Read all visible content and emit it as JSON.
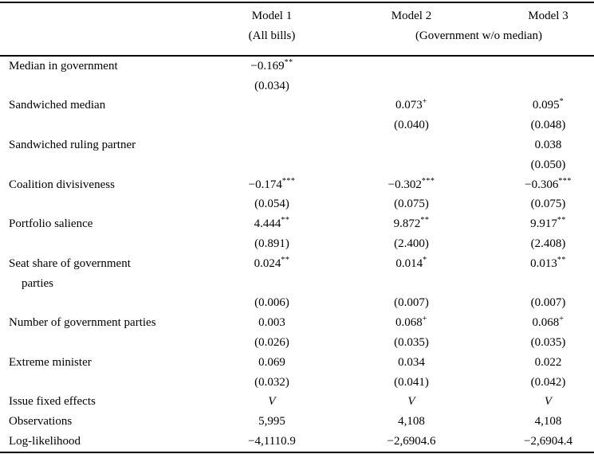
{
  "colors": {
    "background": "#ffffff",
    "text": "#000000",
    "rule": "#000000"
  },
  "table": {
    "header": {
      "models": [
        "Model 1",
        "Model 2",
        "Model 3"
      ],
      "sub_model1": "(All bills)",
      "sub_model23": "(Government w/o median)"
    },
    "rows": [
      {
        "label": "Median in government",
        "cells": [
          "−0.169^**",
          "",
          ""
        ]
      },
      {
        "label": "",
        "cells": [
          "(0.034)",
          "",
          ""
        ]
      },
      {
        "label": "Sandwiched median",
        "cells": [
          "",
          "0.073^+",
          "0.095^*"
        ]
      },
      {
        "label": "",
        "cells": [
          "",
          "(0.040)",
          "(0.048)"
        ]
      },
      {
        "label": "Sandwiched ruling partner",
        "cells": [
          "",
          "",
          "0.038"
        ]
      },
      {
        "label": "",
        "cells": [
          "",
          "",
          "(0.050)"
        ]
      },
      {
        "label": "Coalition divisiveness",
        "cells": [
          "−0.174^***",
          "−0.302^***",
          "−0.306^***"
        ]
      },
      {
        "label": "",
        "cells": [
          "(0.054)",
          "(0.075)",
          "(0.075)"
        ]
      },
      {
        "label": "Portfolio salience",
        "cells": [
          "4.444^**",
          "9.872^**",
          "9.917^**"
        ]
      },
      {
        "label": "",
        "cells": [
          "(0.891)",
          "(2.400)",
          "(2.408)"
        ]
      },
      {
        "label": "Seat share of government",
        "cells": [
          "0.024^**",
          "0.014^*",
          "0.013^**"
        ]
      },
      {
        "label": "parties",
        "indent": true,
        "cells": [
          "",
          "",
          ""
        ]
      },
      {
        "label": "",
        "cells": [
          "(0.006)",
          "(0.007)",
          "(0.007)"
        ]
      },
      {
        "label": "Number of government parties",
        "cells": [
          "0.003",
          "0.068^+",
          "0.068^+"
        ]
      },
      {
        "label": "",
        "cells": [
          "(0.026)",
          "(0.035)",
          "(0.035)"
        ]
      },
      {
        "label": "Extreme minister",
        "cells": [
          "0.069",
          "0.034",
          "0.022"
        ]
      },
      {
        "label": "",
        "cells": [
          "(0.032)",
          "(0.041)",
          "(0.042)"
        ]
      },
      {
        "label": "Issue fixed effects",
        "italic": true,
        "cells": [
          "V",
          "V",
          "V"
        ]
      },
      {
        "label": "Observations",
        "cells": [
          "5,995",
          "4,108",
          "4,108"
        ]
      },
      {
        "label": "Log-likelihood",
        "cells": [
          "−4,1110.9",
          "−2,6904.6",
          "−2,6904.4"
        ]
      }
    ]
  }
}
